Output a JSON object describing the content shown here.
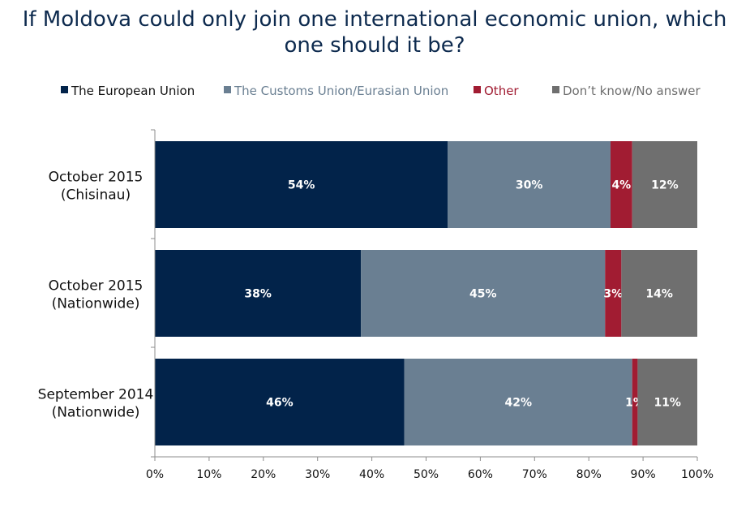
{
  "chart_data": {
    "type": "bar",
    "orientation": "horizontal",
    "stacked": true,
    "title_lines": [
      "If Moldova could only join one international economic union, which",
      "one should it be?"
    ],
    "categories": [
      [
        "October 2015",
        "(Chisinau)"
      ],
      [
        "October 2015",
        "(Nationwide)"
      ],
      [
        "September 2014",
        "(Nationwide)"
      ]
    ],
    "series": [
      {
        "name": "The European Union",
        "color": "#02234a",
        "values": [
          54,
          38,
          46
        ],
        "labels": [
          "54%",
          "38%",
          "46%"
        ]
      },
      {
        "name": "The Customs Union/Eurasian Union",
        "color": "#6a7f92",
        "values": [
          30,
          45,
          42
        ],
        "labels": [
          "30%",
          "45%",
          "42%"
        ]
      },
      {
        "name": "Other",
        "color": "#a11c32",
        "values": [
          4,
          3,
          1
        ],
        "labels": [
          "4%",
          "3%",
          "1%"
        ]
      },
      {
        "name": "Don’t know/No answer",
        "color": "#6f6f6f",
        "values": [
          12,
          14,
          11
        ],
        "labels": [
          "12%",
          "14%",
          "11%"
        ]
      }
    ],
    "xlim": [
      0,
      100
    ],
    "xticks": [
      "0%",
      "10%",
      "20%",
      "30%",
      "40%",
      "50%",
      "60%",
      "70%",
      "80%",
      "90%",
      "100%"
    ],
    "legend_position": "top",
    "grid": false
  }
}
